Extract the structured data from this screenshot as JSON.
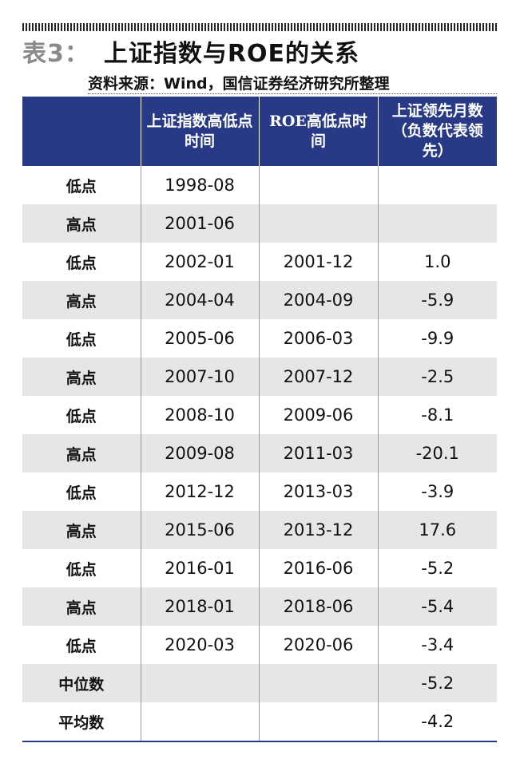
{
  "title": {
    "prefix": "表3：",
    "main": "上证指数与ROE的关系"
  },
  "source": "资料来源：Wind，国信证券经济研究所整理",
  "colors": {
    "header_bg": "#283a86",
    "stripe": "#e6e6e6",
    "title_prefix": "#8a8a8a"
  },
  "table": {
    "headers": [
      "",
      "上证指数高低点时间",
      "ROE高低点时间",
      "上证领先月数（负数代表领先）"
    ],
    "rows": [
      [
        "低点",
        "1998-08",
        "",
        ""
      ],
      [
        "高点",
        "2001-06",
        "",
        ""
      ],
      [
        "低点",
        "2002-01",
        "2001-12",
        "1.0"
      ],
      [
        "高点",
        "2004-04",
        "2004-09",
        "-5.9"
      ],
      [
        "低点",
        "2005-06",
        "2006-03",
        "-9.9"
      ],
      [
        "高点",
        "2007-10",
        "2007-12",
        "-2.5"
      ],
      [
        "低点",
        "2008-10",
        "2009-06",
        "-8.1"
      ],
      [
        "高点",
        "2009-08",
        "2011-03",
        "-20.1"
      ],
      [
        "低点",
        "2012-12",
        "2013-03",
        "-3.9"
      ],
      [
        "高点",
        "2015-06",
        "2013-12",
        "17.6"
      ],
      [
        "低点",
        "2016-01",
        "2016-06",
        "-5.2"
      ],
      [
        "高点",
        "2018-01",
        "2018-06",
        "-5.4"
      ],
      [
        "低点",
        "2020-03",
        "2020-06",
        "-3.4"
      ],
      [
        "中位数",
        "",
        "",
        "-5.2"
      ],
      [
        "平均数",
        "",
        "",
        "-4.2"
      ]
    ]
  }
}
